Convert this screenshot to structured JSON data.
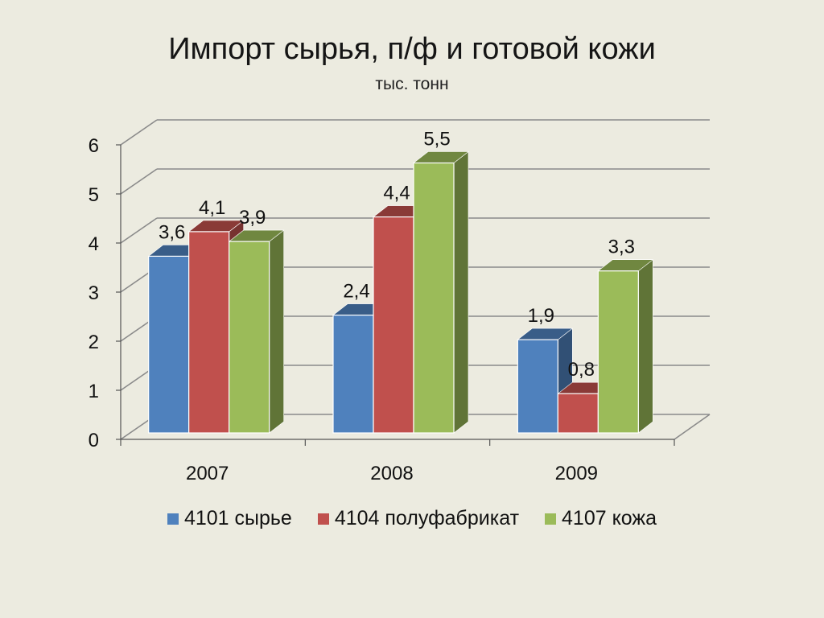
{
  "title": "Импорт сырья, п/ф и готовой кожи",
  "subtitle": "тыс. тонн",
  "chart_data": {
    "type": "bar",
    "categories": [
      "2007",
      "2008",
      "2009"
    ],
    "series": [
      {
        "name": "4101 сырье",
        "values": [
          3.6,
          2.4,
          1.9
        ],
        "labels": [
          "3,6",
          "2,4",
          "1,9"
        ],
        "color": "#4f81bd"
      },
      {
        "name": "4104 полуфабрикат",
        "values": [
          4.1,
          4.4,
          0.8
        ],
        "labels": [
          "4,1",
          "4,4",
          "0,8"
        ],
        "color": "#c0504d"
      },
      {
        "name": "4107 кожа",
        "values": [
          3.9,
          5.5,
          3.3
        ],
        "labels": [
          "3,9",
          "5,5",
          "3,3"
        ],
        "color": "#9bbb59"
      }
    ],
    "y_ticks": [
      "0",
      "1",
      "2",
      "3",
      "4",
      "5",
      "6"
    ],
    "ylim": [
      0,
      6
    ],
    "grid": true,
    "legend": "bottom"
  }
}
